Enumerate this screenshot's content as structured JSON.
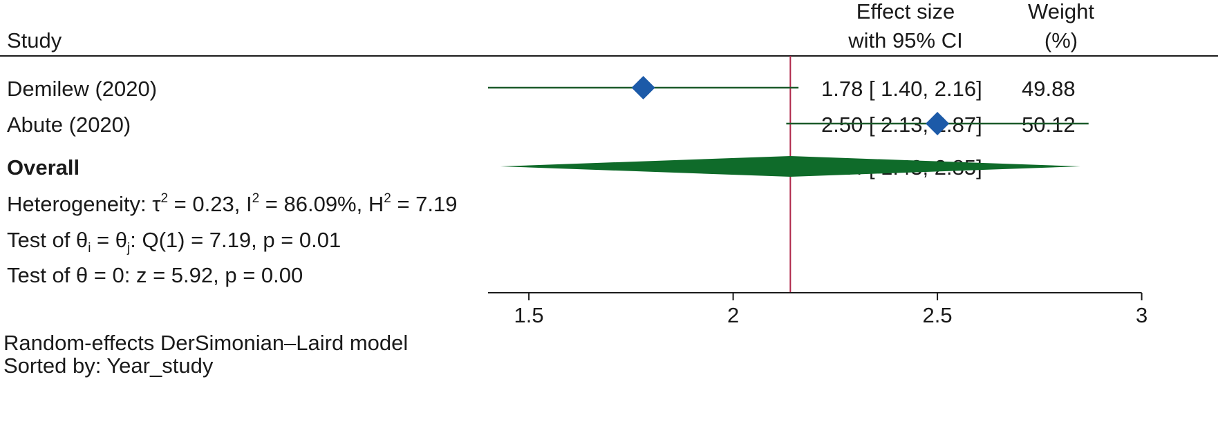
{
  "header": {
    "study": "Study",
    "effect_line1": "Effect size",
    "effect_line2": "with 95% CI",
    "weight_line1": "Weight",
    "weight_line2": "(%)"
  },
  "chart_data": {
    "type": "forest",
    "studies": [
      {
        "label": "Demilew (2020)",
        "effect": 1.78,
        "ci_low": 1.4,
        "ci_high": 2.16,
        "weight": 49.88,
        "text": "1.78 [ 1.40,  2.16]",
        "weight_text": "49.88"
      },
      {
        "label": "Abute (2020)",
        "effect": 2.5,
        "ci_low": 2.13,
        "ci_high": 2.87,
        "weight": 50.12,
        "text": "2.50 [ 2.13,  2.87]",
        "weight_text": "50.12"
      }
    ],
    "overall": {
      "label": "Overall",
      "effect": 2.14,
      "ci_low": 1.43,
      "ci_high": 2.85,
      "text": "2.14 [ 1.43,  2.85]"
    },
    "xlim": [
      1.4,
      3.0
    ],
    "xticks": [
      1.5,
      2,
      2.5,
      3
    ],
    "xtick_labels": [
      "1.5",
      "2",
      "2.5",
      "3"
    ],
    "reference_line": 2.14,
    "colors": {
      "marker": "#1c5aa8",
      "ci": "#1b5a2a",
      "overall": "#0f6b2a",
      "reference": "#b0284a",
      "axis": "#1a1a1a"
    }
  },
  "stats": {
    "heterogeneity": {
      "prefix": "Heterogeneity: τ",
      "tau2": " = 0.23, I",
      "i2": " = 86.09%, H",
      "h2": " = 7.19",
      "sup": "2"
    },
    "test_theta_ij": {
      "p1": "Test of θ",
      "sub_i": "i",
      "p2": " = θ",
      "sub_j": "j",
      "p3": ": Q(1) = 7.19, p = 0.01"
    },
    "test_theta_0": "Test of θ = 0: z = 5.92, p = 0.00"
  },
  "footnotes": {
    "model": "Random-effects DerSimonian–Laird model",
    "sort": "Sorted by: Year_study"
  }
}
